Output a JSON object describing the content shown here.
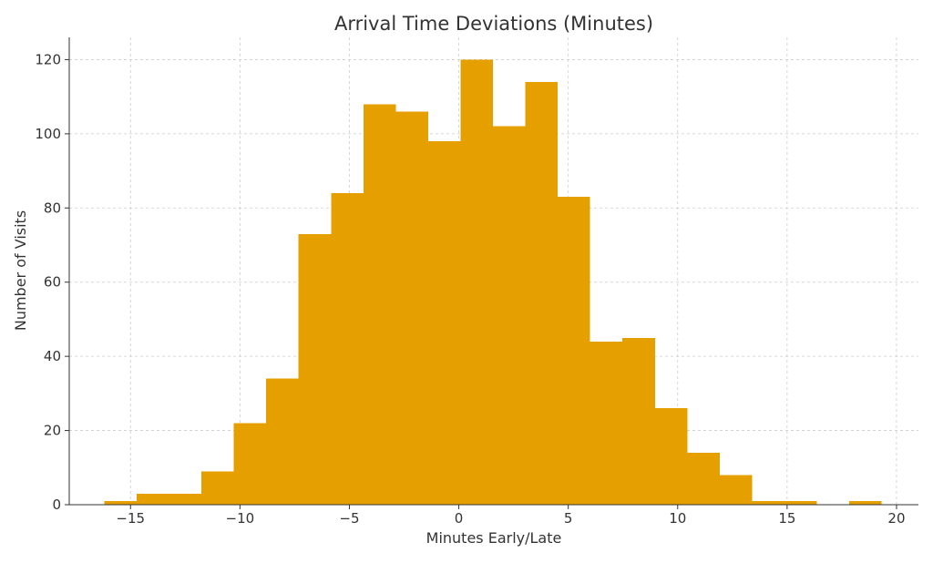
{
  "chart_data": {
    "type": "bar",
    "subtype": "histogram",
    "title": "Arrival Time Deviations (Minutes)",
    "xlabel": "Minutes Early/Late",
    "ylabel": "Number of Visits",
    "xlim": [
      -17.8,
      21.0
    ],
    "ylim": [
      0,
      126
    ],
    "xticks": [
      -15,
      -10,
      -5,
      0,
      5,
      10,
      15,
      20
    ],
    "xtick_labels": [
      "−15",
      "−10",
      "−5",
      "0",
      "5",
      "10",
      "15",
      "20"
    ],
    "yticks": [
      0,
      20,
      40,
      60,
      80,
      100,
      120
    ],
    "ytick_labels": [
      "0",
      "20",
      "40",
      "60",
      "80",
      "100",
      "120"
    ],
    "grid": true,
    "legend": "none",
    "bin_edges": [
      -16.2,
      -14.72,
      -13.24,
      -11.76,
      -10.28,
      -8.8,
      -7.32,
      -5.84,
      -4.36,
      -2.88,
      -1.4,
      0.08,
      1.56,
      3.04,
      4.52,
      6.0,
      7.48,
      8.96,
      10.44,
      11.92,
      13.4,
      14.88,
      16.36,
      17.84,
      19.32
    ],
    "counts": [
      1,
      3,
      3,
      9,
      22,
      34,
      73,
      84,
      108,
      106,
      98,
      120,
      102,
      114,
      83,
      44,
      45,
      26,
      14,
      8,
      1,
      1,
      0,
      1
    ],
    "colors": {
      "bar": "#E5A000",
      "grid": "#cccccc",
      "axis": "#333333",
      "text": "#333333"
    }
  }
}
